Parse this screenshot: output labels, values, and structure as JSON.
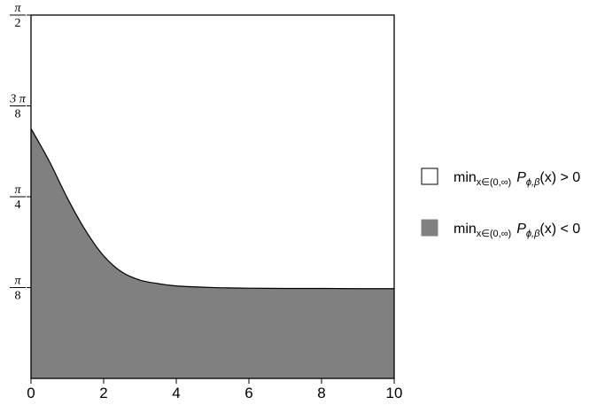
{
  "chart_data": {
    "type": "area",
    "xlim": [
      0,
      10
    ],
    "ylim": [
      0,
      1.5707963
    ],
    "x_ticks": [
      {
        "value": 0,
        "label": "0"
      },
      {
        "value": 2,
        "label": "2"
      },
      {
        "value": 4,
        "label": "4"
      },
      {
        "value": 6,
        "label": "6"
      },
      {
        "value": 8,
        "label": "8"
      },
      {
        "value": 10,
        "label": "10"
      }
    ],
    "y_ticks": [
      {
        "value": 0.3926991,
        "num": "π",
        "den": "8"
      },
      {
        "value": 0.7853982,
        "num": "π",
        "den": "4"
      },
      {
        "value": 1.1780972,
        "num": "3 π",
        "den": "8"
      },
      {
        "value": 1.5707963,
        "num": "π",
        "den": "2"
      }
    ],
    "boundary": {
      "x": [
        0,
        0.5,
        1,
        1.5,
        2,
        2.5,
        3,
        3.5,
        4,
        5,
        6,
        7,
        8,
        9,
        10
      ],
      "y": [
        1.08,
        0.94,
        0.78,
        0.64,
        0.53,
        0.46,
        0.425,
        0.41,
        0.4,
        0.393,
        0.39,
        0.389,
        0.389,
        0.388,
        0.388
      ]
    },
    "regions": [
      {
        "fill": "#ffffff",
        "position": "above-boundary"
      },
      {
        "fill": "#808080",
        "position": "below-boundary"
      }
    ],
    "grid": false,
    "legend_position": "right"
  },
  "legend": [
    {
      "swatch": "#ffffff",
      "min": "min",
      "sub": "x∈(0,∞)",
      "P": "P",
      "Psub": "ϕ,β",
      "rest": "(x) > 0"
    },
    {
      "swatch": "#808080",
      "min": "min",
      "sub": "x∈(0,∞)",
      "P": "P",
      "Psub": "ϕ,β",
      "rest": "(x) < 0"
    }
  ]
}
